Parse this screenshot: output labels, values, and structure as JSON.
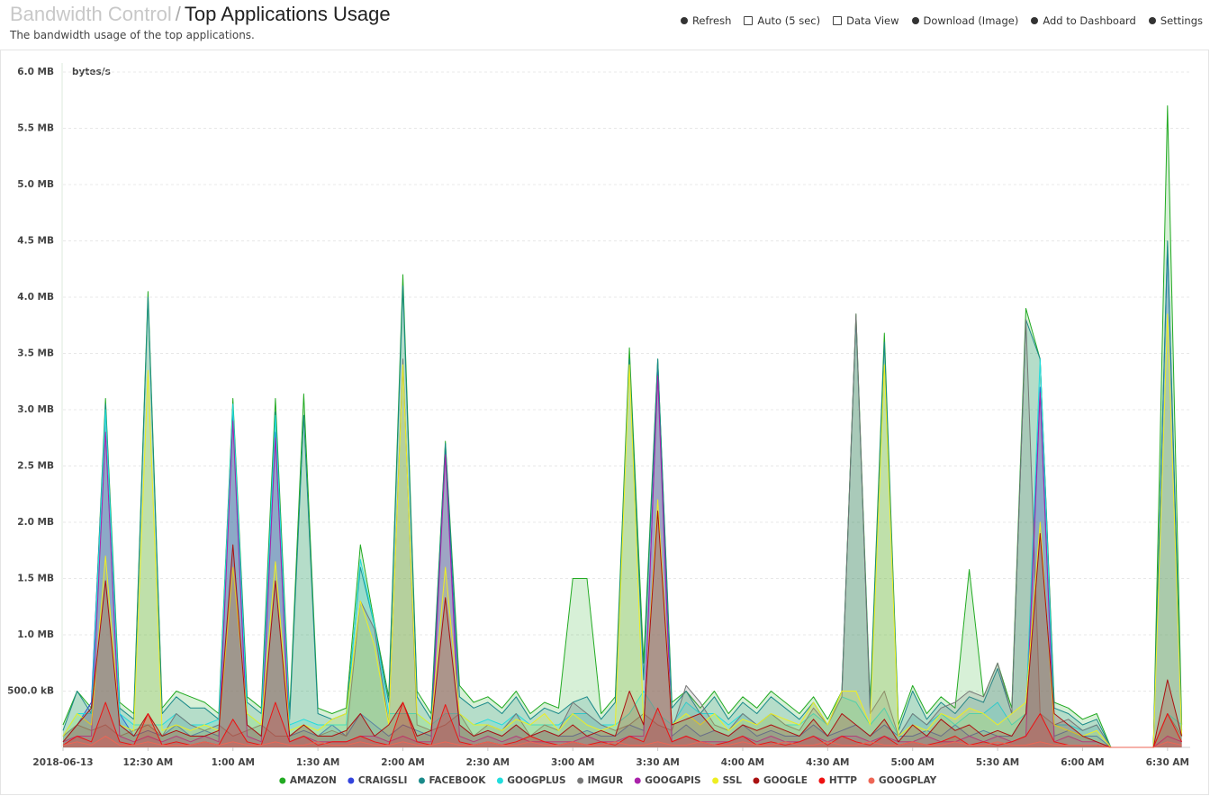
{
  "header": {
    "section": "Bandwidth Control",
    "separator": "/",
    "title": "Top Applications Usage",
    "subtitle": "The bandwidth usage of the top applications."
  },
  "toolbar": [
    "Refresh",
    "Auto (5 sec)",
    "Data View",
    "Download (Image)",
    "Add to Dashboard",
    "Settings"
  ],
  "chart_data": {
    "type": "area",
    "y_label": "bytes/s",
    "grid": true,
    "xlim": [
      0,
      398
    ],
    "ylim": [
      0,
      6
    ],
    "xticks": [
      {
        "value": 0,
        "label": "2018-06-13"
      },
      {
        "value": 30,
        "label": "12:30 AM"
      },
      {
        "value": 60,
        "label": "1:00 AM"
      },
      {
        "value": 90,
        "label": "1:30 AM"
      },
      {
        "value": 120,
        "label": "2:00 AM"
      },
      {
        "value": 150,
        "label": "2:30 AM"
      },
      {
        "value": 180,
        "label": "3:00 AM"
      },
      {
        "value": 210,
        "label": "3:30 AM"
      },
      {
        "value": 240,
        "label": "4:00 AM"
      },
      {
        "value": 270,
        "label": "4:30 AM"
      },
      {
        "value": 300,
        "label": "5:00 AM"
      },
      {
        "value": 330,
        "label": "5:30 AM"
      },
      {
        "value": 360,
        "label": "6:00 AM"
      },
      {
        "value": 390,
        "label": "6:30 AM"
      }
    ],
    "yticks": [
      {
        "value": 0.5,
        "label": "500.0 kB"
      },
      {
        "value": 1,
        "label": "1.0 MB"
      },
      {
        "value": 1.5,
        "label": "1.5 MB"
      },
      {
        "value": 2,
        "label": "2.0 MB"
      },
      {
        "value": 2.5,
        "label": "2.5 MB"
      },
      {
        "value": 3,
        "label": "3.0 MB"
      },
      {
        "value": 3.5,
        "label": "3.5 MB"
      },
      {
        "value": 4,
        "label": "4.0 MB"
      },
      {
        "value": 4.5,
        "label": "4.5 MB"
      },
      {
        "value": 5,
        "label": "5.0 MB"
      },
      {
        "value": 5.5,
        "label": "5.5 MB"
      },
      {
        "value": 6,
        "label": "6.0 MB"
      }
    ],
    "x": [
      0,
      5,
      10,
      15,
      20,
      25,
      30,
      35,
      40,
      45,
      50,
      55,
      60,
      65,
      70,
      75,
      80,
      85,
      90,
      95,
      100,
      105,
      110,
      115,
      120,
      125,
      130,
      135,
      140,
      145,
      150,
      155,
      160,
      165,
      170,
      175,
      180,
      185,
      190,
      195,
      200,
      205,
      210,
      215,
      220,
      225,
      230,
      235,
      240,
      245,
      250,
      255,
      260,
      265,
      270,
      275,
      280,
      285,
      290,
      295,
      300,
      305,
      310,
      315,
      320,
      325,
      330,
      335,
      340,
      345,
      350,
      355,
      360,
      365,
      370,
      375,
      380,
      385,
      390,
      395
    ],
    "series": [
      {
        "name": "AMAZON",
        "color": "#22aa22",
        "values": [
          0.2,
          0.5,
          0.35,
          3.1,
          0.4,
          0.3,
          4.05,
          0.35,
          0.5,
          0.45,
          0.4,
          0.3,
          3.1,
          0.45,
          0.35,
          3.1,
          0.3,
          3.14,
          0.35,
          0.3,
          0.35,
          1.8,
          1.1,
          0.45,
          4.2,
          0.5,
          0.3,
          2.72,
          0.55,
          0.4,
          0.45,
          0.35,
          0.5,
          0.3,
          0.4,
          0.35,
          1.5,
          1.5,
          0.3,
          0.45,
          3.55,
          0.75,
          3.45,
          0.4,
          0.5,
          0.35,
          0.5,
          0.3,
          0.45,
          0.35,
          0.5,
          0.4,
          0.3,
          0.45,
          0.25,
          0.5,
          3.85,
          0.4,
          3.68,
          0.2,
          0.55,
          0.3,
          0.45,
          0.35,
          1.58,
          0.45,
          0.75,
          0.35,
          3.9,
          3.45,
          0.4,
          0.35,
          0.25,
          0.3,
          0,
          0,
          0,
          0,
          5.7,
          0.2
        ]
      },
      {
        "name": "CRAIGSLI",
        "color": "#3344dd",
        "values": [
          0.1,
          0.2,
          0.4,
          3.0,
          0.3,
          0.1,
          0.15,
          0.1,
          0.2,
          0.1,
          0.15,
          0.1,
          2.95,
          0.2,
          0.1,
          2.8,
          0.1,
          0.15,
          0.1,
          0.2,
          0.1,
          0.3,
          0.2,
          0.1,
          0.2,
          0.15,
          0.1,
          2.65,
          0.2,
          0.1,
          0.15,
          0.1,
          0.2,
          0.1,
          0.15,
          0.1,
          0.1,
          0.15,
          0.1,
          0.1,
          0.2,
          0.15,
          3.35,
          0.1,
          0.2,
          0.1,
          0.15,
          0.1,
          0.2,
          0.1,
          0.15,
          0.1,
          0.1,
          0.2,
          0.1,
          0.15,
          0.2,
          0.1,
          0.2,
          0.1,
          0.1,
          0.15,
          0.1,
          0.2,
          0.1,
          0.15,
          0.1,
          0.1,
          0.3,
          3.2,
          0.1,
          0.15,
          0.1,
          0.1,
          0,
          0,
          0,
          0,
          4.45,
          0.1
        ]
      },
      {
        "name": "FACEBOOK",
        "color": "#1a8a8a",
        "values": [
          0.15,
          0.5,
          0.3,
          3.05,
          0.35,
          0.25,
          4.0,
          0.3,
          0.45,
          0.35,
          0.35,
          0.25,
          3.05,
          0.4,
          0.3,
          2.98,
          0.25,
          2.95,
          0.3,
          0.25,
          0.3,
          1.6,
          1.08,
          0.4,
          4.1,
          0.45,
          0.25,
          2.7,
          0.45,
          0.35,
          0.4,
          0.3,
          0.45,
          0.25,
          0.35,
          0.3,
          0.4,
          0.45,
          0.25,
          0.4,
          3.45,
          0.6,
          3.45,
          0.35,
          0.5,
          0.3,
          0.45,
          0.25,
          0.4,
          0.3,
          0.45,
          0.35,
          0.25,
          0.4,
          0.2,
          0.5,
          3.8,
          0.35,
          3.6,
          0.15,
          0.5,
          0.25,
          0.4,
          0.3,
          0.45,
          0.4,
          0.7,
          0.3,
          3.8,
          3.45,
          0.35,
          0.3,
          0.2,
          0.25,
          0,
          0,
          0,
          0,
          4.5,
          0.15
        ]
      },
      {
        "name": "GOOGPLUS",
        "color": "#22dddd",
        "values": [
          0.1,
          0.3,
          0.3,
          3.0,
          0.3,
          0.2,
          0.2,
          0.2,
          0.3,
          0.2,
          0.2,
          0.25,
          3.05,
          0.3,
          0.2,
          2.95,
          0.2,
          0.25,
          0.2,
          0.2,
          0.2,
          1.67,
          1.08,
          0.3,
          0.3,
          0.3,
          0.2,
          0.3,
          0.3,
          0.2,
          0.25,
          0.2,
          0.3,
          0.2,
          0.2,
          0.2,
          0.3,
          0.3,
          0.2,
          0.2,
          0.3,
          0.5,
          0.3,
          0.2,
          0.4,
          0.3,
          0.3,
          0.2,
          0.3,
          0.2,
          0.3,
          0.2,
          0.2,
          0.3,
          0.2,
          0.45,
          0.4,
          0.2,
          0.35,
          0.1,
          0.3,
          0.2,
          0.3,
          0.2,
          0.3,
          0.3,
          0.4,
          0.2,
          0.3,
          3.45,
          0.2,
          0.2,
          0.15,
          0.2,
          0,
          0,
          0,
          0,
          0.3,
          0.2
        ]
      },
      {
        "name": "IMGUR",
        "color": "#777777",
        "values": [
          0.1,
          0.2,
          0.15,
          0.2,
          0.1,
          0.15,
          0.2,
          0.1,
          0.3,
          0.2,
          0.15,
          0.2,
          0.1,
          0.15,
          0.2,
          0.1,
          0.1,
          0.2,
          0.1,
          0.15,
          0.1,
          1.3,
          1.05,
          0.2,
          3.45,
          0.2,
          0.15,
          0.2,
          0.3,
          0.1,
          0.2,
          0.15,
          0.3,
          0.1,
          0.2,
          0.15,
          0.4,
          0.3,
          0.2,
          0.15,
          0.2,
          0.3,
          0.2,
          0.15,
          0.55,
          0.4,
          0.2,
          0.15,
          0.3,
          0.2,
          0.3,
          0.2,
          0.15,
          0.35,
          0.2,
          0.45,
          3.85,
          0.3,
          0.5,
          0.1,
          0.3,
          0.2,
          0.35,
          0.4,
          0.5,
          0.45,
          0.75,
          0.3,
          3.8,
          0.3,
          0.2,
          0.25,
          0.15,
          0.2,
          0,
          0,
          0,
          0,
          0.3,
          0.1
        ]
      },
      {
        "name": "GOOGAPIS",
        "color": "#aa22aa",
        "values": [
          0.05,
          0.1,
          0.1,
          2.8,
          0.1,
          0.05,
          0.1,
          0.05,
          0.1,
          0.05,
          0.1,
          0.05,
          2.9,
          0.1,
          0.05,
          2.75,
          0.05,
          0.1,
          0.05,
          0.05,
          0.05,
          0.1,
          0.1,
          0.05,
          0.1,
          0.05,
          0.05,
          2.6,
          0.1,
          0.05,
          0.1,
          0.05,
          0.1,
          0.05,
          0.05,
          0.05,
          0.05,
          0.1,
          0.05,
          0.05,
          0.1,
          0.1,
          3.3,
          0.05,
          0.1,
          0.05,
          0.05,
          0.05,
          0.1,
          0.05,
          0.1,
          0.05,
          0.05,
          0.1,
          0.05,
          0.1,
          0.1,
          0.05,
          0.1,
          0.05,
          0.05,
          0.1,
          0.05,
          0.05,
          0.1,
          0.05,
          0.1,
          0.05,
          0.1,
          3.15,
          0.05,
          0.1,
          0.05,
          0.05,
          0,
          0,
          0,
          0,
          0.1,
          0.05
        ]
      },
      {
        "name": "SSL",
        "color": "#eeee22",
        "values": [
          0.1,
          0.3,
          0.2,
          1.7,
          0.2,
          0.15,
          3.35,
          0.15,
          0.2,
          0.15,
          0.2,
          0.15,
          1.6,
          0.3,
          0.2,
          1.65,
          0.15,
          0.2,
          0.15,
          0.25,
          0.3,
          1.3,
          0.9,
          0.2,
          3.4,
          0.3,
          0.2,
          1.6,
          0.3,
          0.2,
          0.2,
          0.15,
          0.25,
          0.2,
          0.3,
          0.15,
          0.3,
          0.2,
          0.15,
          0.2,
          3.4,
          0.2,
          2.2,
          0.2,
          0.3,
          0.2,
          0.3,
          0.15,
          0.25,
          0.2,
          0.3,
          0.25,
          0.2,
          0.4,
          0.2,
          0.5,
          0.5,
          0.2,
          3.4,
          0.1,
          0.2,
          0.15,
          0.3,
          0.25,
          0.35,
          0.3,
          0.2,
          0.3,
          0.4,
          2.0,
          0.2,
          0.15,
          0.1,
          0.15,
          0,
          0,
          0,
          0,
          3.85,
          0.1
        ]
      },
      {
        "name": "GOOGLE",
        "color": "#aa1111",
        "values": [
          0.05,
          0.2,
          0.35,
          1.48,
          0.2,
          0.1,
          0.3,
          0.1,
          0.15,
          0.1,
          0.1,
          0.15,
          1.8,
          0.2,
          0.1,
          1.48,
          0.1,
          0.2,
          0.1,
          0.1,
          0.15,
          0.3,
          0.1,
          0.2,
          0.4,
          0.1,
          0.15,
          1.33,
          0.2,
          0.1,
          0.15,
          0.1,
          0.2,
          0.1,
          0.15,
          0.1,
          0.2,
          0.1,
          0.15,
          0.1,
          0.5,
          0.2,
          2.1,
          0.2,
          0.25,
          0.3,
          0.15,
          0.1,
          0.2,
          0.15,
          0.2,
          0.15,
          0.1,
          0.25,
          0.1,
          0.3,
          0.2,
          0.1,
          0.25,
          0.05,
          0.2,
          0.1,
          0.25,
          0.15,
          0.2,
          0.1,
          0.15,
          0.1,
          0.3,
          1.9,
          0.3,
          0.2,
          0.1,
          0.05,
          0,
          0,
          0,
          0,
          0.6,
          0.1
        ]
      },
      {
        "name": "HTTP",
        "color": "#ee1111",
        "values": [
          0.02,
          0.1,
          0.05,
          0.4,
          0.05,
          0.02,
          0.3,
          0.02,
          0.05,
          0.02,
          0.05,
          0.02,
          0.25,
          0.05,
          0.02,
          0.4,
          0.05,
          0.1,
          0.02,
          0.05,
          0.05,
          0.1,
          0.05,
          0.02,
          0.4,
          0.05,
          0.02,
          0.38,
          0.05,
          0.02,
          0.05,
          0.02,
          0.05,
          0.1,
          0.05,
          0.02,
          0.05,
          0.02,
          0.05,
          0.02,
          0.1,
          0.05,
          0.35,
          0.05,
          0.1,
          0.05,
          0.02,
          0.05,
          0.1,
          0.02,
          0.05,
          0.02,
          0.05,
          0.1,
          0.02,
          0.1,
          0.05,
          0.02,
          0.1,
          0.02,
          0.05,
          0.02,
          0.05,
          0.1,
          0.02,
          0.05,
          0.02,
          0.05,
          0.1,
          0.3,
          0.05,
          0.02,
          0.02,
          0.02,
          0,
          0,
          0,
          0,
          0.3,
          0.05
        ]
      },
      {
        "name": "GOOGPLAY",
        "color": "#ee6655",
        "values": [
          0.02,
          0.05,
          0.02,
          0.1,
          0.02,
          0.02,
          0.05,
          0.02,
          0.02,
          0.02,
          0.05,
          0.02,
          0.05,
          0.02,
          0.02,
          0.05,
          0.02,
          0.02,
          0.05,
          0.02,
          0.02,
          0.05,
          0.02,
          0.02,
          0.05,
          0.02,
          0.02,
          0.05,
          0.02,
          0.02,
          0.05,
          0.02,
          0.02,
          0.05,
          0.02,
          0.02,
          0.05,
          0.02,
          0.02,
          0.05,
          0.02,
          0.02,
          0.05,
          0.02,
          0.02,
          0.05,
          0.02,
          0.02,
          0.05,
          0.02,
          0.02,
          0.05,
          0.02,
          0.02,
          0.05,
          0.02,
          0.02,
          0.05,
          0.02,
          0.02,
          0.05,
          0.02,
          0.02,
          0.05,
          0.02,
          0.02,
          0.05,
          0.02,
          0.02,
          0.05,
          0.02,
          0.02,
          0.02,
          0.02,
          0,
          0,
          0,
          0,
          0.05,
          0.02
        ]
      }
    ]
  }
}
